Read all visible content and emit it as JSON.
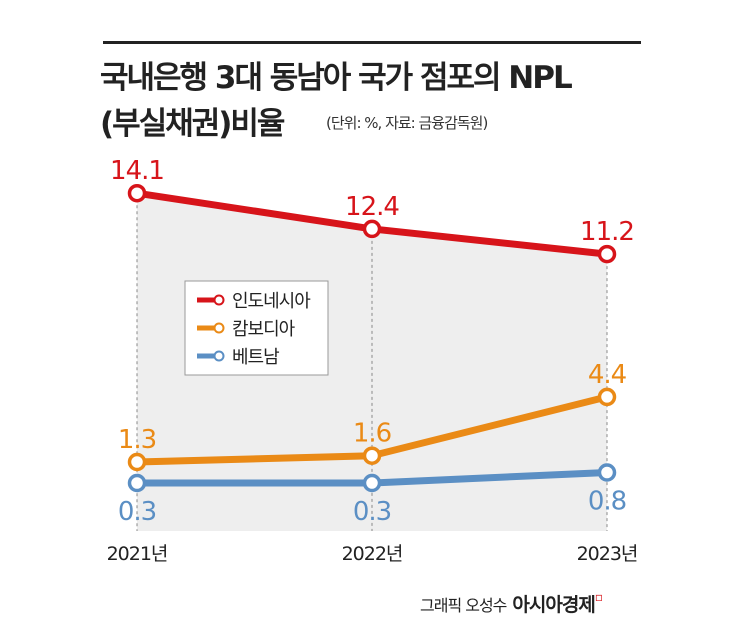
{
  "title_line1": "국내은행 3대 동남아 국가 점포의 NPL",
  "title_line2": "(부실채권)비율",
  "unit_note": "(단위: %, 자료: 금융감독원)",
  "credit": "그래픽 오성수",
  "brand": "아시아경제",
  "chart_data": {
    "type": "line",
    "categories": [
      "2021년",
      "2022년",
      "2023년"
    ],
    "series": [
      {
        "name": "인도네시아",
        "values": [
          14.1,
          12.4,
          11.2
        ],
        "color": "#d7141a",
        "label_pos": "above"
      },
      {
        "name": "캄보디아",
        "values": [
          1.3,
          1.6,
          4.4
        ],
        "color": "#ea8a16",
        "label_pos": "above"
      },
      {
        "name": "베트남",
        "values": [
          0.3,
          0.3,
          0.8
        ],
        "color": "#5b8fc4",
        "label_pos": "below"
      }
    ],
    "legend": "center-left",
    "grid": false,
    "background_fill": "#eeeeee"
  }
}
